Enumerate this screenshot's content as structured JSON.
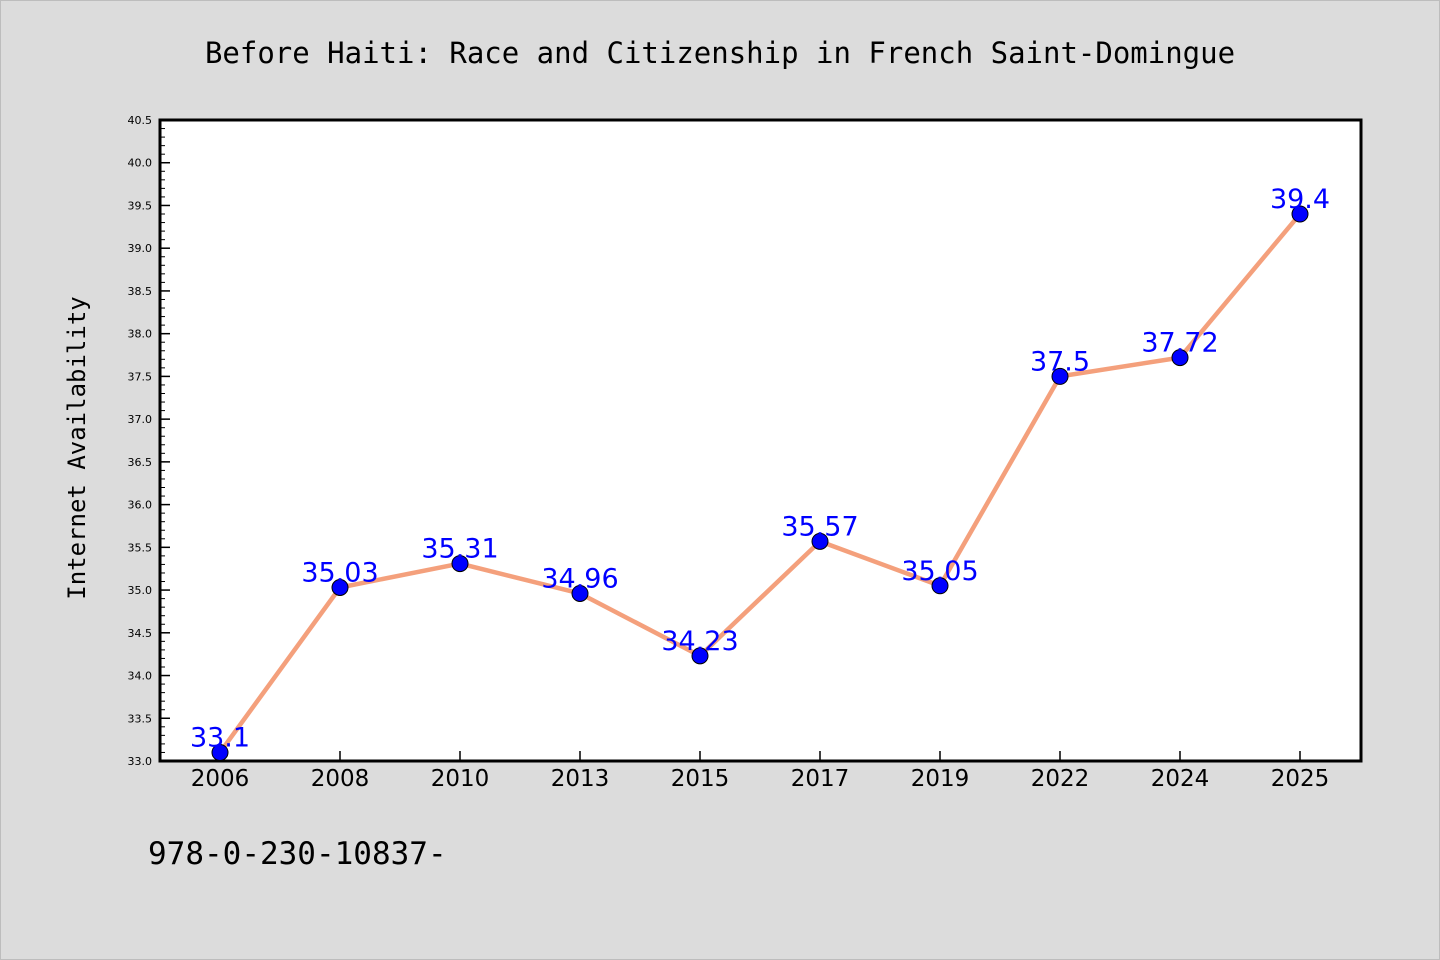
{
  "footer_text": "978-0-230-10837-",
  "colors": {
    "background": "#dcdcdc",
    "plot_background": "#ffffff",
    "line": "#f4a07c",
    "marker": "#0000ff",
    "data_label": "#0000ff",
    "axis": "#000000"
  },
  "chart_data": {
    "type": "line",
    "title": "Before Haiti: Race and Citizenship in French Saint-Domingue",
    "xlabel": "",
    "ylabel": "Internet Availability",
    "categories": [
      "2006",
      "2008",
      "2010",
      "2013",
      "2015",
      "2017",
      "2019",
      "2022",
      "2024",
      "2025"
    ],
    "series": [
      {
        "values": [
          33.1,
          35.03,
          35.31,
          34.96,
          34.23,
          35.57,
          35.05,
          37.5,
          37.72,
          39.4
        ],
        "labels": [
          "33.1",
          "35.03",
          "35.31",
          "34.96",
          "34.23",
          "35.57",
          "35.05",
          "37.5",
          "37.72",
          "39.4"
        ]
      }
    ],
    "ylim": [
      33.0,
      40.5
    ],
    "yticks": [
      "33.0",
      "33.5",
      "34.0",
      "34.5",
      "35.0",
      "35.5",
      "36.0",
      "36.5",
      "37.0",
      "37.5",
      "38.0",
      "38.5",
      "39.0",
      "39.5",
      "40.0",
      "40.5"
    ],
    "grid": false,
    "legend": "none"
  }
}
